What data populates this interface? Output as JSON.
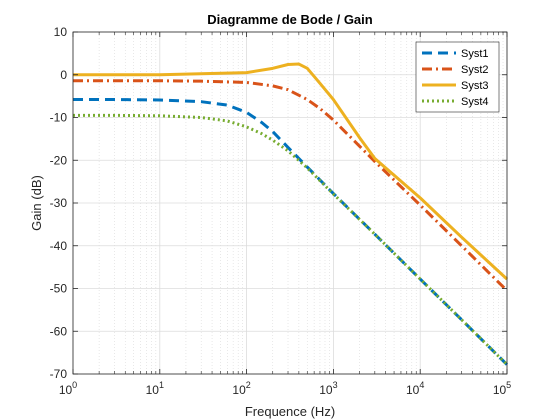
{
  "chart_data": {
    "type": "line",
    "title": "Diagramme de Bode / Gain",
    "xlabel": "Frequence (Hz)",
    "ylabel": "Gain (dB)",
    "x_scale": "log",
    "xlim": [
      1,
      100000
    ],
    "ylim": [
      -70,
      10
    ],
    "x_ticks": [
      {
        "value": 1,
        "base": "10",
        "exp": "0"
      },
      {
        "value": 10,
        "base": "10",
        "exp": "1"
      },
      {
        "value": 100,
        "base": "10",
        "exp": "2"
      },
      {
        "value": 1000,
        "base": "10",
        "exp": "3"
      },
      {
        "value": 10000,
        "base": "10",
        "exp": "4"
      },
      {
        "value": 100000,
        "base": "10",
        "exp": "5"
      }
    ],
    "y_ticks": [
      10,
      0,
      -10,
      -20,
      -30,
      -40,
      -50,
      -60,
      -70
    ],
    "y_tick_labels": [
      "10",
      "0",
      "-10",
      "-20",
      "-30",
      "-40",
      "-50",
      "-60",
      "-70"
    ],
    "grid": true,
    "minor_grid": true,
    "legend_position": "top-right",
    "series": [
      {
        "name": "Syst1",
        "color": "#0072BD",
        "dash": "dashed",
        "x": [
          1,
          3,
          10,
          30,
          60,
          100,
          150,
          200,
          300,
          500,
          1000,
          3000,
          10000,
          30000,
          100000
        ],
        "y": [
          -5.8,
          -5.8,
          -5.9,
          -6.3,
          -7.1,
          -8.8,
          -11.2,
          -13.3,
          -17.0,
          -21.6,
          -27.8,
          -37.3,
          -47.8,
          -57.3,
          -67.8
        ]
      },
      {
        "name": "Syst2",
        "color": "#D95319",
        "dash": "dashdot",
        "x": [
          1,
          10,
          30,
          100,
          200,
          300,
          500,
          700,
          1000,
          2000,
          3000,
          10000,
          30000,
          100000
        ],
        "y": [
          -1.4,
          -1.4,
          -1.5,
          -1.8,
          -2.6,
          -3.5,
          -5.8,
          -7.9,
          -10.6,
          -16.7,
          -20.3,
          -30.5,
          -40.0,
          -50.5
        ]
      },
      {
        "name": "Syst3",
        "color": "#EDB120",
        "dash": "solid",
        "x": [
          1,
          10,
          100,
          200,
          300,
          400,
          500,
          700,
          1000,
          2000,
          3000,
          10000,
          30000,
          100000
        ],
        "y": [
          0.0,
          0.0,
          0.5,
          1.5,
          2.4,
          2.5,
          1.5,
          -2.0,
          -5.8,
          -14.7,
          -19.6,
          -28.8,
          -38.0,
          -47.8
        ]
      },
      {
        "name": "Syst4",
        "color": "#77AC30",
        "dash": "dotted",
        "x": [
          1,
          3,
          10,
          30,
          60,
          100,
          150,
          200,
          300,
          500,
          1000,
          3000,
          10000,
          30000,
          100000
        ],
        "y": [
          -9.5,
          -9.5,
          -9.6,
          -10.0,
          -10.8,
          -12.2,
          -13.8,
          -15.3,
          -17.8,
          -21.8,
          -27.9,
          -37.3,
          -47.8,
          -57.3,
          -67.8
        ]
      }
    ]
  }
}
